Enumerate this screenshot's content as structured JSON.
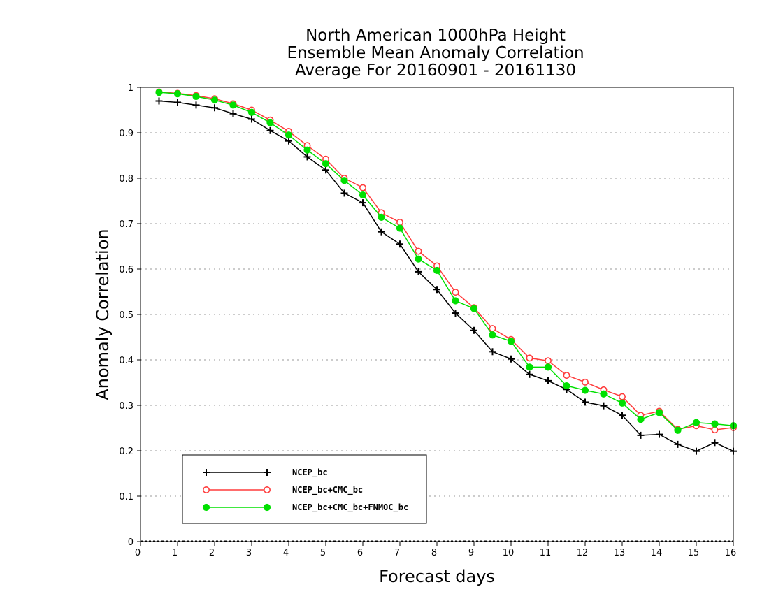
{
  "chart_data": {
    "type": "line",
    "title": [
      "North American 1000hPa Height",
      "Ensemble Mean Anomaly Correlation",
      "Average For 20160901 - 20161130"
    ],
    "xlabel": "Forecast days",
    "ylabel": "Anomaly Correlation",
    "xlim": [
      0,
      16
    ],
    "ylim": [
      0,
      1
    ],
    "xticks": [
      "0",
      "1",
      "2",
      "3",
      "4",
      "5",
      "6",
      "7",
      "8",
      "9",
      "10",
      "11",
      "12",
      "13",
      "14",
      "15",
      "16"
    ],
    "yticks": [
      "0",
      "0.1",
      "0.2",
      "0.3",
      "0.4",
      "0.5",
      "0.6",
      "0.7",
      "0.8",
      "0.9",
      "1"
    ],
    "grid": "horizontal dotted",
    "legend_position": "lower-left",
    "x": [
      0.5,
      1,
      1.5,
      2,
      2.5,
      3,
      3.5,
      4,
      4.5,
      5,
      5.5,
      6,
      6.5,
      7,
      7.5,
      8,
      8.5,
      9,
      9.5,
      10,
      10.5,
      11,
      11.5,
      12,
      12.5,
      13,
      13.5,
      14,
      14.5,
      15,
      15.5,
      16
    ],
    "series": [
      {
        "name": "NCEP_bc",
        "color": "#000000",
        "marker": "plus",
        "values": [
          0.97,
          0.967,
          0.961,
          0.955,
          0.942,
          0.93,
          0.905,
          0.882,
          0.847,
          0.818,
          0.767,
          0.746,
          0.682,
          0.655,
          0.594,
          0.555,
          0.503,
          0.465,
          0.418,
          0.402,
          0.368,
          0.354,
          0.335,
          0.307,
          0.299,
          0.278,
          0.234,
          0.236,
          0.214,
          0.199,
          0.218,
          0.199
        ]
      },
      {
        "name": "NCEP_bc+CMC_bc",
        "color": "#ff3b3b",
        "marker": "open-circle",
        "values": [
          0.99,
          0.987,
          0.982,
          0.975,
          0.964,
          0.95,
          0.928,
          0.903,
          0.872,
          0.842,
          0.8,
          0.779,
          0.724,
          0.703,
          0.639,
          0.607,
          0.549,
          0.515,
          0.469,
          0.445,
          0.404,
          0.398,
          0.366,
          0.351,
          0.334,
          0.319,
          0.278,
          0.287,
          0.247,
          0.255,
          0.246,
          0.251
        ]
      },
      {
        "name": "NCEP_bc+CMC_bc+FNMOC_bc",
        "color": "#00e000",
        "marker": "filled-circle",
        "values": [
          0.989,
          0.986,
          0.98,
          0.972,
          0.961,
          0.945,
          0.922,
          0.895,
          0.862,
          0.832,
          0.795,
          0.763,
          0.714,
          0.69,
          0.622,
          0.597,
          0.53,
          0.513,
          0.455,
          0.441,
          0.384,
          0.384,
          0.343,
          0.333,
          0.325,
          0.305,
          0.269,
          0.284,
          0.245,
          0.262,
          0.259,
          0.255
        ]
      }
    ]
  }
}
